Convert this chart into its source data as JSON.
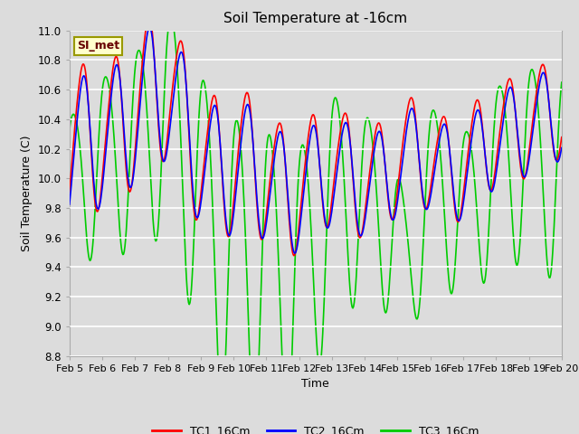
{
  "title": "Soil Temperature at -16cm",
  "xlabel": "Time",
  "ylabel": "Soil Temperature (C)",
  "ylim": [
    8.8,
    11.0
  ],
  "background_color": "#dcdcdc",
  "plot_bg_color": "#dcdcdc",
  "grid_color": "white",
  "series": {
    "TC1_16Cm": {
      "color": "#ff0000",
      "label": "TC1_16Cm"
    },
    "TC2_16Cm": {
      "color": "#0000ff",
      "label": "TC2_16Cm"
    },
    "TC3_16Cm": {
      "color": "#00cc00",
      "label": "TC3_16Cm"
    }
  },
  "xtick_labels": [
    "Feb 5",
    "Feb 6",
    "Feb 7",
    "Feb 8",
    "Feb 9",
    "Feb 10",
    "Feb 11",
    "Feb 12",
    "Feb 13",
    "Feb 14",
    "Feb 15",
    "Feb 16",
    "Feb 17",
    "Feb 18",
    "Feb 19",
    "Feb 20"
  ],
  "annotation_text": "SI_met",
  "annotation_bbox": {
    "facecolor": "#ffffcc",
    "edgecolor": "#999900",
    "linewidth": 1.5
  },
  "line_width": 1.2,
  "yticks": [
    8.8,
    9.0,
    9.2,
    9.4,
    9.6,
    9.8,
    10.0,
    10.2,
    10.4,
    10.6,
    10.8,
    11.0
  ]
}
